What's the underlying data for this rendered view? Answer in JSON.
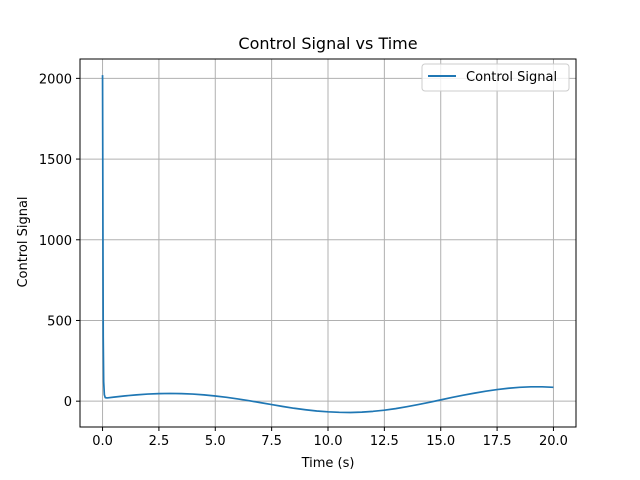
{
  "chart_data": {
    "type": "line",
    "title": "Control Signal vs Time",
    "xlabel": "Time (s)",
    "ylabel": "Control Signal",
    "xlim": [
      -1.0,
      21.0
    ],
    "ylim": [
      -160,
      2120
    ],
    "xticks": [
      0.0,
      2.5,
      5.0,
      7.5,
      10.0,
      12.5,
      15.0,
      17.5,
      20.0
    ],
    "xtick_labels": [
      "0.0",
      "2.5",
      "5.0",
      "7.5",
      "10.0",
      "12.5",
      "15.0",
      "17.5",
      "20.0"
    ],
    "yticks": [
      0,
      500,
      1000,
      1500,
      2000
    ],
    "ytick_labels": [
      "0",
      "500",
      "1000",
      "1500",
      "2000"
    ],
    "grid": true,
    "legend_position": "top-right",
    "colors": {
      "series": "#1f77b4",
      "grid": "#b0b0b0",
      "axis": "#000000"
    },
    "series": [
      {
        "name": "Control Signal",
        "x": [
          0.0,
          0.01,
          0.02,
          0.03,
          0.05,
          0.08,
          0.12,
          0.2,
          0.5,
          1.0,
          1.5,
          2.0,
          2.5,
          3.0,
          3.5,
          4.0,
          4.5,
          5.0,
          5.5,
          6.0,
          6.5,
          7.0,
          7.5,
          8.0,
          8.5,
          9.0,
          9.5,
          10.0,
          10.5,
          11.0,
          11.5,
          12.0,
          12.5,
          13.0,
          13.5,
          14.0,
          14.5,
          15.0,
          15.5,
          16.0,
          16.5,
          17.0,
          17.5,
          18.0,
          18.5,
          19.0,
          19.5,
          20.0
        ],
        "y": [
          2020,
          1500,
          900,
          400,
          120,
          40,
          22,
          20,
          25,
          33,
          39,
          44,
          47,
          48,
          47,
          44,
          39,
          32,
          24,
          14,
          3,
          -9,
          -21,
          -33,
          -44,
          -53,
          -61,
          -66,
          -69,
          -70,
          -68,
          -63,
          -56,
          -46,
          -34,
          -21,
          -7,
          8,
          23,
          37,
          50,
          62,
          72,
          80,
          86,
          89,
          89,
          86
        ]
      }
    ]
  }
}
